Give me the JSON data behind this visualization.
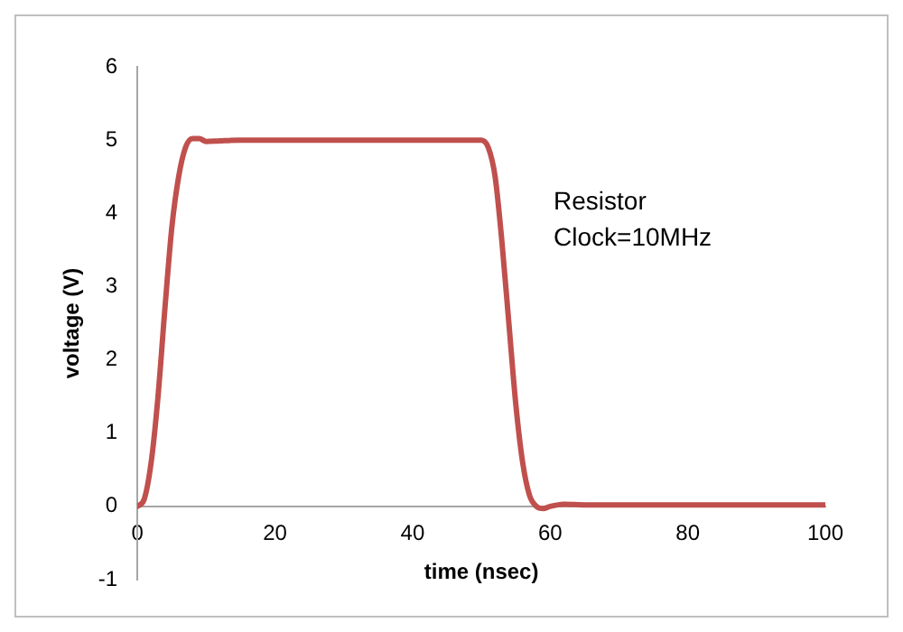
{
  "chart_data": {
    "type": "line",
    "xlabel": "time (nsec)",
    "ylabel": "voltage (V)",
    "x": [
      0,
      1,
      2,
      3,
      4,
      5,
      6,
      7,
      8,
      9,
      10,
      12,
      15,
      20,
      30,
      40,
      50,
      51,
      52,
      53,
      54,
      55,
      56,
      57,
      58,
      59,
      60,
      62,
      65,
      70,
      80,
      90,
      100
    ],
    "series": [
      {
        "color": "#c0504d",
        "values": [
          0,
          0.1,
          0.6,
          1.5,
          2.7,
          3.8,
          4.5,
          4.9,
          5.02,
          5.02,
          4.98,
          4.99,
          5,
          5,
          5,
          5,
          5,
          4.9,
          4.5,
          3.6,
          2.5,
          1.4,
          0.6,
          0.15,
          0,
          -0.03,
          0,
          0.03,
          0.02,
          0.02,
          0.02,
          0.02,
          0.02
        ]
      }
    ],
    "xlim": [
      0,
      100
    ],
    "xticks": [
      0,
      20,
      40,
      60,
      80,
      100
    ],
    "ylim": [
      -1,
      6
    ],
    "yticks": [
      -1,
      0,
      1,
      2,
      3,
      4,
      5,
      6
    ],
    "annotations": [
      "Resistor",
      "Clock=10MHz"
    ],
    "grid": false,
    "legend": false,
    "marker": "none",
    "line_style": "solid"
  }
}
